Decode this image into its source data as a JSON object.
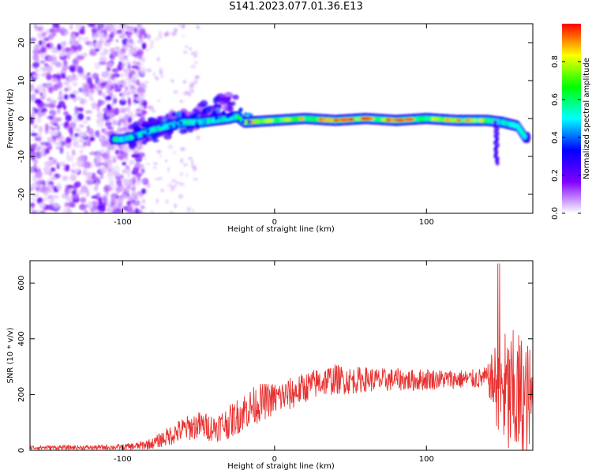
{
  "figure": {
    "title": "S141.2023.077.01.36.E13"
  },
  "chart_data": [
    {
      "type": "heatmap",
      "xlabel": "Height of straight line (km)",
      "ylabel": "Frequency (Hz)",
      "xlim": [
        -161,
        170
      ],
      "ylim": [
        -25,
        25
      ],
      "xticks": [
        -100,
        0,
        100
      ],
      "yticks": [
        -20,
        -10,
        0,
        10,
        20
      ],
      "colorbar": {
        "label": "Normalized spectral amplitude",
        "range": [
          0,
          1
        ],
        "ticks": [
          0.0,
          0.2,
          0.4,
          0.6,
          0.8
        ],
        "colormap": [
          "#ffffff",
          "#8000ff",
          "#0000ff",
          "#00ffff",
          "#00ff00",
          "#ffff00",
          "#ff0000"
        ]
      },
      "ridge": {
        "description_points_x": [
          -107,
          -100,
          -90,
          -80,
          -70,
          -60,
          -50,
          -40,
          -30,
          -25,
          -20,
          0,
          20,
          40,
          60,
          80,
          100,
          120,
          140,
          150,
          160,
          165
        ],
        "description_points_y": [
          -5.5,
          -5.5,
          -4.5,
          -3,
          -2,
          -1,
          -1,
          -0.5,
          0,
          0.5,
          -1,
          -0.5,
          0,
          -0.5,
          0,
          -0.5,
          0,
          -0.5,
          -0.5,
          -1,
          -2,
          -5
        ]
      }
    },
    {
      "type": "line",
      "xlabel": "Height of straight line (km)",
      "ylabel": "SNR (10 * v/v)",
      "xlim": [
        -161,
        170
      ],
      "ylim": [
        0,
        680
      ],
      "xticks": [
        -100,
        0,
        100
      ],
      "yticks": [
        0,
        200,
        400,
        600
      ],
      "color": "#e8312f",
      "envelope": {
        "x": [
          -161,
          -120,
          -100,
          -90,
          -80,
          -70,
          -60,
          -50,
          -40,
          -30,
          -20,
          -10,
          0,
          10,
          20,
          30,
          40,
          50,
          60,
          70,
          80,
          90,
          100,
          110,
          120,
          130,
          140,
          148,
          155,
          160,
          165,
          170
        ],
        "mean": [
          10,
          10,
          12,
          15,
          25,
          50,
          75,
          90,
          80,
          100,
          140,
          170,
          185,
          200,
          225,
          245,
          255,
          250,
          255,
          250,
          255,
          250,
          255,
          255,
          255,
          255,
          260,
          230,
          180,
          190,
          170,
          160
        ],
        "amp": [
          8,
          8,
          10,
          15,
          20,
          35,
          45,
          50,
          50,
          60,
          70,
          70,
          60,
          60,
          55,
          55,
          55,
          50,
          45,
          45,
          40,
          40,
          40,
          35,
          35,
          35,
          40,
          200,
          250,
          250,
          240,
          200
        ]
      }
    }
  ]
}
